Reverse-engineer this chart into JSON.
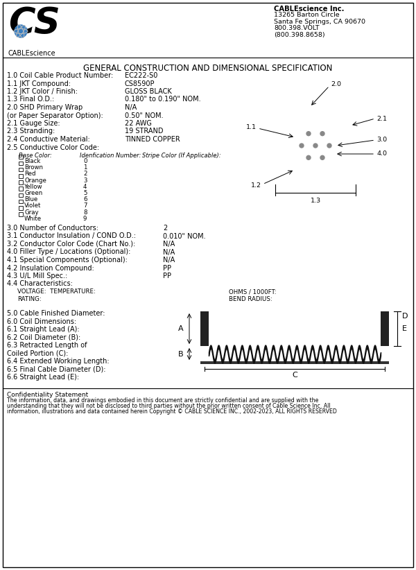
{
  "company_name": "CABLEscience Inc.",
  "company_address_lines": [
    "13265 Barton Circle",
    "Santa Fe Springs, CA 90670",
    "800.398.VOLT",
    "(800.398.8658)"
  ],
  "title": "GENERAL CONSTRUCTION AND DIMENSIONAL SPECIFICATION",
  "specs": [
    [
      "1.0 Coil Cable Product Number:",
      "EC222-S0"
    ],
    [
      "1.1 JKT Compound:",
      "CS8590P"
    ],
    [
      "1.2 JKT Color / Finish:",
      "GLOSS BLACK"
    ],
    [
      "1.3 Final O.D.:",
      "0.180\" to 0.190\" NOM."
    ],
    [
      "2.0 SHD Primary Wrap",
      "N/A"
    ],
    [
      "(or Paper Separator Option):",
      "0.50\" NOM."
    ],
    [
      "2.1 Gauge Size:",
      "22 AWG"
    ],
    [
      "2.3 Stranding:",
      "19 STRAND"
    ],
    [
      "2.4 Conductive Material:",
      "TINNED COPPER"
    ],
    [
      "2.5 Conductive Color Code:",
      ""
    ]
  ],
  "color_table_header": [
    "Base Color:",
    "Idenfication Number:",
    "Stripe Color (If Applicable):"
  ],
  "color_table": [
    [
      "Black",
      "0"
    ],
    [
      "Brown",
      "1"
    ],
    [
      "Red",
      "2"
    ],
    [
      "Orange",
      "3"
    ],
    [
      "Yellow",
      "4"
    ],
    [
      "Green",
      "5"
    ],
    [
      "Blue",
      "6"
    ],
    [
      "Violet",
      "7"
    ],
    [
      "Gray",
      "8"
    ],
    [
      "White",
      "9"
    ]
  ],
  "specs2": [
    [
      "3.0 Number of Conductors:",
      "2"
    ],
    [
      "3.1 Conductor Insulation / COND O.D.:",
      "0.010\" NOM."
    ],
    [
      "3.2 Conductor Color Code (Chart No.):",
      "N/A"
    ],
    [
      "4.0 Filler Type / Locations (Optional):",
      "N/A"
    ],
    [
      "4.1 Special Components (Optional):",
      "N/A"
    ],
    [
      "4.2 Insulation Compound:",
      "PP"
    ],
    [
      "4.3 U/L Mill Spec.:",
      "PP"
    ],
    [
      "4.4 Characteristics:",
      ""
    ]
  ],
  "chars": [
    [
      "VOLTAGE:  TEMPERATURE:",
      "OHMS / 1000FT:"
    ],
    [
      "RATING:",
      "BEND RADIUS:"
    ]
  ],
  "specs3": [
    [
      "5.0 Cable Finished Diameter:",
      ""
    ],
    [
      "6.0 Coil Dimensions:",
      ""
    ],
    [
      "6.1 Straight Lead (A):",
      ""
    ],
    [
      "6.2 Coil Diameter (B):",
      ""
    ],
    [
      "6.3 Retracted Length of",
      ""
    ],
    [
      "Coiled Portion (C):",
      ""
    ],
    [
      "6.4 Extended Working Length:",
      ""
    ],
    [
      "6.5 Final Cable Diameter (D):",
      ""
    ],
    [
      "6.6 Straight Lead (E):",
      ""
    ]
  ],
  "confidentiality_title": "Confidentiality Statement",
  "confidentiality_lines": [
    "The information, data, and drawings embodied in this document are strictly confidential and are supplied with the",
    "understanding that they will not be disclosed to third parties without the prior written consent of Cable Science Inc. All",
    "information, illustrations and data contained herein Copyright © CABLE SCIENCE INC., 2002-2023, ALL RIGHTS RESERVED"
  ],
  "bg_color": "#ffffff"
}
